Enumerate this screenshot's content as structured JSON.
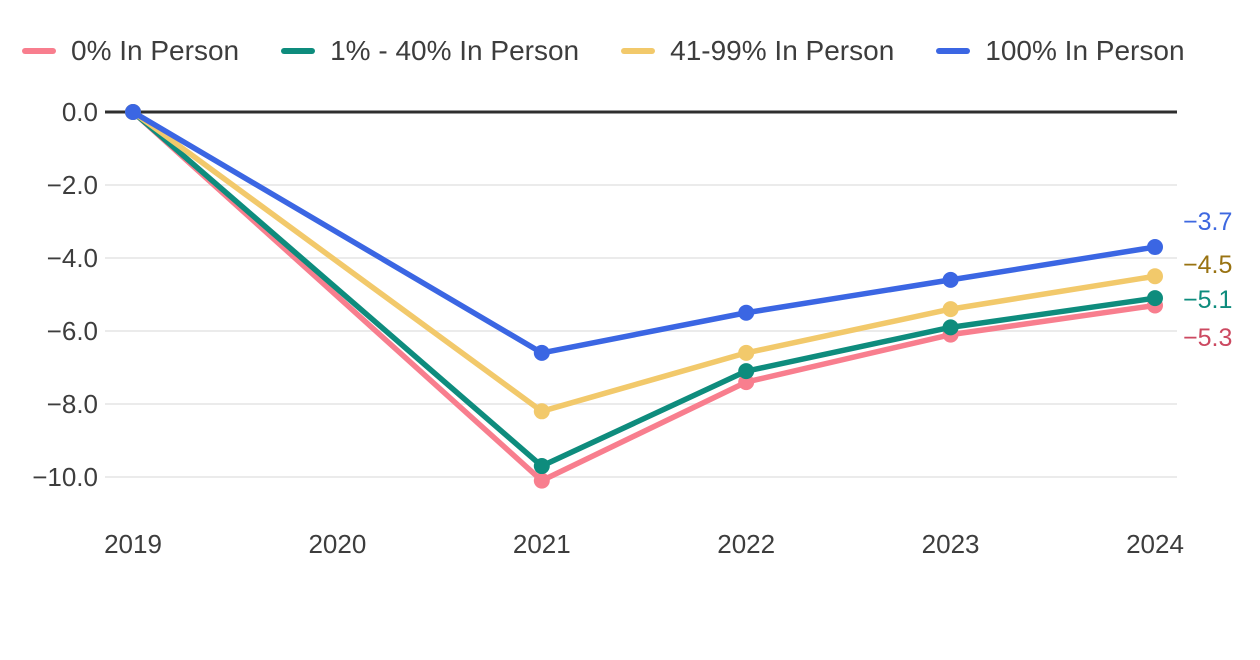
{
  "chart_data": {
    "type": "line",
    "title": "",
    "xlabel": "",
    "ylabel": "",
    "x": [
      2019,
      2020,
      2021,
      2022,
      2023,
      2024
    ],
    "x_tick_labels": [
      "2019",
      "2020",
      "2021",
      "2022",
      "2023",
      "2024"
    ],
    "y_ticks": [
      0,
      -2,
      -4,
      -6,
      -8,
      -10
    ],
    "y_tick_labels": [
      "0.0",
      "−2.0",
      "−4.0",
      "−6.0",
      "−8.0",
      "−10.0"
    ],
    "ylim": [
      -10.5,
      0
    ],
    "grid": true,
    "zero_line_color": "#2e2e2e",
    "gridline_color": "#ebebeb",
    "axis_text_color": "#3d3d3d",
    "legend_position": "top",
    "series": [
      {
        "name": "0% In Person",
        "color": "#F87E8E",
        "label_color": "#CC4961",
        "points": [
          [
            2019,
            0.0
          ],
          [
            2021,
            -10.1
          ],
          [
            2022,
            -7.4
          ],
          [
            2023,
            -6.1
          ],
          [
            2024,
            -5.3
          ]
        ],
        "end_label": "−5.3"
      },
      {
        "name": "1% - 40% In Person",
        "color": "#0E8C7D",
        "label_color": "#0E8C7D",
        "points": [
          [
            2019,
            0.0
          ],
          [
            2021,
            -9.7
          ],
          [
            2022,
            -7.1
          ],
          [
            2023,
            -5.9
          ],
          [
            2024,
            -5.1
          ]
        ],
        "end_label": "−5.1"
      },
      {
        "name": "41-99% In Person",
        "color": "#F2C96B",
        "label_color": "#997312",
        "points": [
          [
            2019,
            0.0
          ],
          [
            2021,
            -8.2
          ],
          [
            2022,
            -6.6
          ],
          [
            2023,
            -5.4
          ],
          [
            2024,
            -4.5
          ]
        ],
        "end_label": "−4.5"
      },
      {
        "name": "100% In Person",
        "color": "#3B66E3",
        "label_color": "#3E68E0",
        "points": [
          [
            2019,
            0.0
          ],
          [
            2021,
            -6.6
          ],
          [
            2022,
            -5.5
          ],
          [
            2023,
            -4.6
          ],
          [
            2024,
            -3.7
          ]
        ],
        "end_label": "−3.7"
      }
    ]
  }
}
